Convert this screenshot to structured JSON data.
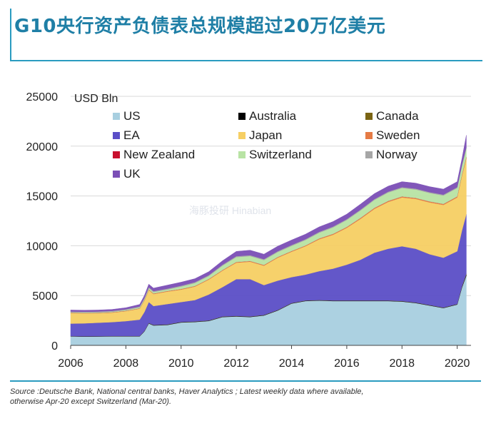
{
  "title": "G10央行资产负债表总规模超过20万亿美元",
  "source_line1": "Source :Deutsche Bank, National central banks, Haver Analytics ; Latest weekly data where available,",
  "source_line2": "otherwise Apr-20 except Switzerland (Mar-20).",
  "watermark": "海豚投研 Hinabian",
  "chart_data": {
    "type": "area",
    "stacked": true,
    "title": "",
    "ylabel": "USD Bln",
    "xlabel": "",
    "xlim": [
      2006,
      2020.5
    ],
    "ylim": [
      0,
      25000
    ],
    "xticks": [
      2006,
      2008,
      2010,
      2012,
      2014,
      2016,
      2018,
      2020
    ],
    "yticks": [
      0,
      5000,
      10000,
      15000,
      20000,
      25000
    ],
    "legend_position": "top-left",
    "x": [
      2006.0,
      2006.5,
      2007.0,
      2007.5,
      2008.0,
      2008.5,
      2008.67,
      2008.83,
      2009.0,
      2009.5,
      2010.0,
      2010.5,
      2011.0,
      2011.5,
      2012.0,
      2012.5,
      2013.0,
      2013.5,
      2014.0,
      2014.5,
      2015.0,
      2015.5,
      2016.0,
      2016.5,
      2017.0,
      2017.5,
      2018.0,
      2018.5,
      2019.0,
      2019.5,
      2020.0,
      2020.17,
      2020.33
    ],
    "series": [
      {
        "name": "US",
        "color": "#a8cfe0",
        "values": [
          900,
          880,
          890,
          900,
          900,
          900,
          1400,
          2200,
          2000,
          2050,
          2300,
          2350,
          2450,
          2850,
          2900,
          2850,
          3000,
          3500,
          4200,
          4450,
          4500,
          4450,
          4450,
          4450,
          4450,
          4450,
          4400,
          4250,
          4000,
          3750,
          4100,
          5800,
          7000
        ]
      },
      {
        "name": "Australia",
        "color": "#000000",
        "values": [
          20,
          20,
          20,
          20,
          20,
          20,
          25,
          30,
          30,
          30,
          30,
          30,
          30,
          30,
          30,
          30,
          30,
          30,
          30,
          30,
          30,
          30,
          30,
          30,
          30,
          30,
          30,
          30,
          30,
          30,
          30,
          60,
          90
        ]
      },
      {
        "name": "Canada",
        "color": "#7a6413",
        "values": [
          15,
          15,
          15,
          15,
          15,
          15,
          20,
          20,
          20,
          20,
          20,
          20,
          20,
          20,
          20,
          20,
          20,
          20,
          20,
          20,
          20,
          20,
          20,
          20,
          20,
          20,
          20,
          20,
          20,
          20,
          20,
          60,
          90
        ]
      },
      {
        "name": "EA",
        "color": "#5b4fc7",
        "values": [
          1250,
          1300,
          1350,
          1400,
          1500,
          1650,
          1900,
          2100,
          1900,
          2050,
          2000,
          2150,
          2600,
          2950,
          3700,
          3750,
          3000,
          2950,
          2600,
          2600,
          2900,
          3200,
          3600,
          4100,
          4800,
          5200,
          5500,
          5400,
          5100,
          5000,
          5300,
          5600,
          6000
        ]
      },
      {
        "name": "Japan",
        "color": "#f6cf64",
        "values": [
          1050,
          1000,
          950,
          950,
          1000,
          1100,
          1150,
          1200,
          1200,
          1250,
          1250,
          1350,
          1500,
          1650,
          1650,
          1750,
          1950,
          2300,
          2550,
          2850,
          3200,
          3400,
          3700,
          4100,
          4400,
          4700,
          4900,
          5000,
          5200,
          5300,
          5400,
          5500,
          5600
        ]
      },
      {
        "name": "Sweden",
        "color": "#e57b45",
        "values": [
          30,
          30,
          30,
          30,
          30,
          30,
          40,
          50,
          50,
          50,
          50,
          50,
          50,
          50,
          60,
          60,
          60,
          60,
          60,
          60,
          70,
          80,
          80,
          90,
          90,
          90,
          90,
          90,
          90,
          90,
          90,
          90,
          100
        ]
      },
      {
        "name": "New Zealand",
        "color": "#c8102e",
        "values": [
          5,
          5,
          5,
          5,
          5,
          5,
          5,
          5,
          5,
          5,
          5,
          5,
          5,
          5,
          5,
          5,
          5,
          5,
          5,
          5,
          5,
          5,
          5,
          5,
          5,
          5,
          5,
          5,
          5,
          5,
          5,
          10,
          20
        ]
      },
      {
        "name": "Switzerland",
        "color": "#b8e3a4",
        "values": [
          50,
          50,
          60,
          60,
          70,
          100,
          120,
          150,
          150,
          150,
          250,
          300,
          300,
          450,
          500,
          500,
          500,
          500,
          520,
          550,
          580,
          650,
          700,
          750,
          800,
          850,
          850,
          850,
          850,
          850,
          850,
          900,
          900
        ]
      },
      {
        "name": "Norway",
        "color": "#a6a6a6",
        "values": [
          80,
          80,
          80,
          80,
          90,
          90,
          90,
          90,
          90,
          90,
          90,
          90,
          90,
          90,
          90,
          90,
          90,
          90,
          90,
          90,
          90,
          90,
          90,
          90,
          90,
          90,
          90,
          90,
          90,
          90,
          90,
          90,
          90
        ]
      },
      {
        "name": "UK",
        "color": "#7b4fb6",
        "values": [
          150,
          150,
          150,
          150,
          150,
          200,
          250,
          300,
          300,
          350,
          350,
          350,
          350,
          400,
          480,
          500,
          500,
          500,
          500,
          500,
          500,
          500,
          500,
          550,
          550,
          550,
          550,
          550,
          550,
          550,
          550,
          600,
          1200
        ]
      }
    ]
  }
}
